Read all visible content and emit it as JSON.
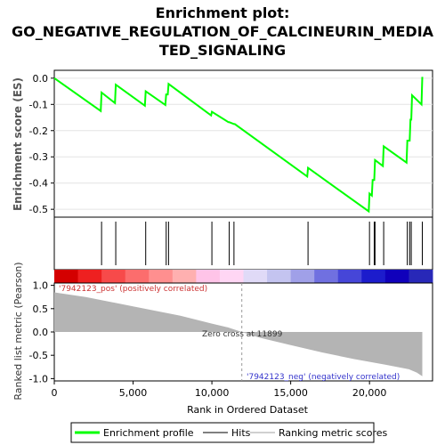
{
  "chart_data": {
    "type": "line",
    "title_lines": [
      "Enrichment plot:",
      "GO_NEGATIVE_REGULATION_OF_CALCINEURIN_MEDIA",
      "TED_SIGNALING"
    ],
    "top_panel": {
      "ylabel": "Enrichment score (ES)",
      "ylim": [
        -0.53,
        0.03
      ],
      "yticks": [
        {
          "value": 0.0,
          "label": "0.0"
        },
        {
          "value": -0.1,
          "label": "-0.1"
        },
        {
          "value": -0.2,
          "label": "-0.2"
        },
        {
          "value": -0.3,
          "label": "-0.3"
        },
        {
          "value": -0.4,
          "label": "-0.4"
        },
        {
          "value": -0.5,
          "label": "-0.5"
        }
      ],
      "series": [
        {
          "name": "Enrichment profile",
          "color": "#00ff00",
          "x": [
            0,
            2950,
            3000,
            3850,
            3900,
            5750,
            5800,
            7050,
            7100,
            7200,
            7250,
            9950,
            10000,
            11050,
            11100,
            11400,
            11450,
            16050,
            16100,
            19950,
            20000,
            20150,
            20200,
            20300,
            20350,
            20850,
            20900,
            22350,
            22400,
            22550,
            22600,
            22650,
            22700,
            23300,
            23350
          ],
          "y": [
            0.0,
            -0.125,
            -0.055,
            -0.095,
            -0.025,
            -0.105,
            -0.05,
            -0.102,
            -0.062,
            -0.062,
            -0.022,
            -0.142,
            -0.128,
            -0.168,
            -0.168,
            -0.175,
            -0.175,
            -0.375,
            -0.342,
            -0.508,
            -0.44,
            -0.448,
            -0.388,
            -0.388,
            -0.312,
            -0.335,
            -0.26,
            -0.322,
            -0.238,
            -0.238,
            -0.158,
            -0.158,
            -0.065,
            -0.1,
            0.005
          ]
        }
      ],
      "hits": [
        3000,
        3900,
        5800,
        7100,
        7250,
        10000,
        11100,
        11400,
        16100,
        20000,
        20300,
        20350,
        20900,
        22400,
        22550,
        22650,
        23350
      ]
    },
    "color_bar": [
      "#d40000",
      "#ee2020",
      "#f74a4a",
      "#fc6d6d",
      "#ff8f8f",
      "#ffb0b0",
      "#ffc4e8",
      "#ffd6f4",
      "#e0daf7",
      "#c4c4f0",
      "#a0a0e8",
      "#7070e0",
      "#4646d8",
      "#1c1ccc",
      "#1000bb",
      "#2828b8"
    ],
    "bottom_panel": {
      "ylabel": "Ranked list metric (Pearson)",
      "ylim": [
        -1.05,
        1.05
      ],
      "yticks": [
        {
          "value": 1.0,
          "label": "1.0"
        },
        {
          "value": 0.5,
          "label": "0.5"
        },
        {
          "value": 0.0,
          "label": "0.0"
        },
        {
          "value": -0.5,
          "label": "-0.5"
        },
        {
          "value": -1.0,
          "label": "-1.0"
        }
      ],
      "metric": {
        "x": [
          0,
          2000,
          5000,
          8000,
          10000,
          11000,
          11899,
          13000,
          15000,
          17000,
          19000,
          21000,
          22500,
          23000,
          23350
        ],
        "y": [
          0.85,
          0.75,
          0.55,
          0.35,
          0.18,
          0.1,
          0.0,
          -0.12,
          -0.28,
          -0.44,
          -0.58,
          -0.7,
          -0.8,
          -0.87,
          -0.95
        ]
      },
      "zero_cross_x": 11899,
      "zero_cross_label": "Zero cross at 11899",
      "pos_label": "'7942123_pos' (positively correlated)",
      "neg_label": "'7942123_neg' (negatively correlated)",
      "pos_color": "#cc3333",
      "neg_color": "#3333cc"
    },
    "xlabel": "Rank in Ordered Dataset",
    "xlim": [
      0,
      24000
    ],
    "xticks": [
      {
        "value": 0,
        "label": "0"
      },
      {
        "value": 5000,
        "label": "5,000"
      },
      {
        "value": 10000,
        "label": "10,000"
      },
      {
        "value": 15000,
        "label": "15,000"
      },
      {
        "value": 20000,
        "label": "20,000"
      }
    ],
    "legend": {
      "placement": "bottom",
      "items": [
        {
          "label": "Enrichment profile",
          "color": "#00ff00",
          "kind": "line"
        },
        {
          "label": "Hits",
          "color": "#000000",
          "kind": "line"
        },
        {
          "label": "Ranking metric scores",
          "color": "#c0c0c0",
          "kind": "line"
        }
      ]
    }
  }
}
